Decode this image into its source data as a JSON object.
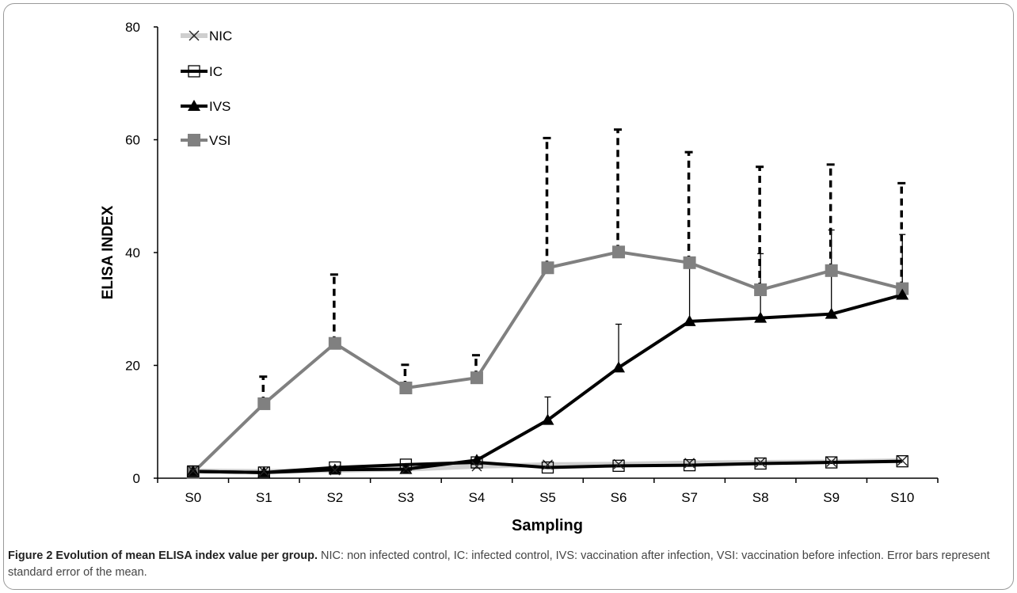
{
  "chart_data": {
    "type": "line",
    "title": "",
    "xlabel": "Sampling",
    "ylabel": "ELISA INDEX",
    "categories": [
      "S0",
      "S1",
      "S2",
      "S3",
      "S4",
      "S5",
      "S6",
      "S7",
      "S8",
      "S9",
      "S10"
    ],
    "ylim": [
      0,
      80
    ],
    "yticks": [
      "0",
      "20",
      "40",
      "60",
      "80"
    ],
    "grid": false,
    "legend_position": "top-left",
    "series": [
      {
        "name": "NIC",
        "marker": "x",
        "color": "#c8c8c8",
        "values": [
          1.3,
          1.2,
          1.4,
          1.6,
          2.1,
          2.4,
          2.5,
          2.7,
          2.8,
          2.9,
          3.1
        ],
        "error_upper": [
          null,
          null,
          null,
          null,
          null,
          null,
          null,
          null,
          null,
          null,
          null
        ]
      },
      {
        "name": "IC",
        "marker": "open-square",
        "color": "#000000",
        "values": [
          1.2,
          1.0,
          1.9,
          2.4,
          2.8,
          1.9,
          2.2,
          2.3,
          2.6,
          2.8,
          3.0
        ],
        "error_upper": [
          null,
          null,
          null,
          null,
          null,
          null,
          null,
          null,
          null,
          null,
          null
        ]
      },
      {
        "name": "IVS",
        "marker": "triangle",
        "color": "#000000",
        "values": [
          1.2,
          1.0,
          1.5,
          1.6,
          3.2,
          10.3,
          19.6,
          27.8,
          28.4,
          29.1,
          32.5
        ],
        "error_upper": [
          null,
          null,
          null,
          null,
          null,
          14.4,
          27.3,
          38.0,
          39.8,
          44.0,
          43.2
        ]
      },
      {
        "name": "VSI",
        "marker": "filled-square",
        "color": "#808080",
        "values": [
          1.0,
          13.2,
          23.9,
          16.0,
          17.8,
          37.3,
          40.1,
          38.2,
          33.4,
          36.8,
          33.6
        ],
        "error_upper": [
          null,
          18.0,
          36.1,
          20.1,
          21.8,
          60.3,
          61.8,
          57.8,
          55.2,
          55.6,
          52.3
        ]
      }
    ]
  },
  "caption": {
    "title": "Figure 2  Evolution of mean ELISA index value per group.",
    "text": " NIC: non infected control, IC: infected control, IVS: vaccination after infection, VSI: vaccination before infection. Error bars represent standard error of the mean."
  }
}
